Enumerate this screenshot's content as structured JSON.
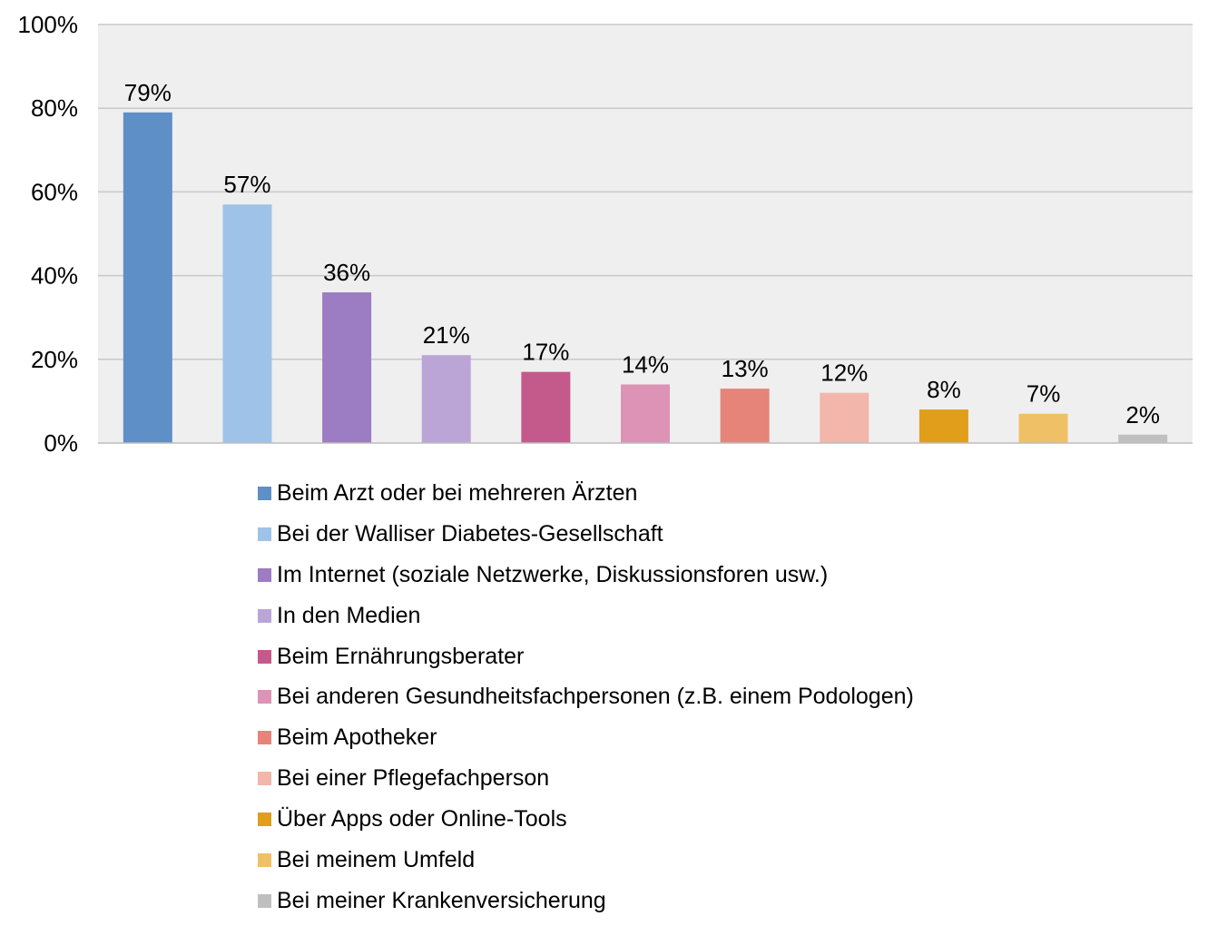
{
  "chart_data": {
    "type": "bar",
    "title": "",
    "xlabel": "",
    "ylabel": "",
    "ylim": [
      0,
      100
    ],
    "yticks": [
      0,
      20,
      40,
      60,
      80,
      100
    ],
    "ytick_labels": [
      "0%",
      "20%",
      "40%",
      "60%",
      "80%",
      "100%"
    ],
    "grid": true,
    "legend_position": "bottom",
    "plot_background": "#efefef",
    "categories": [
      "Beim Arzt oder bei mehreren Ärzten",
      "Bei der Walliser Diabetes-Gesellschaft",
      "Im Internet (soziale Netzwerke, Diskussionsforen usw.)",
      "In den Medien",
      "Beim Ernährungsberater",
      "Bei anderen Gesundheitsfachpersonen (z.B. einem Podologen)",
      "Beim Apotheker",
      "Bei einer Pflegefachperson",
      "Über Apps oder Online-Tools",
      "Bei meinem Umfeld",
      "Bei meiner Krankenversicherung"
    ],
    "values": [
      79,
      57,
      36,
      21,
      17,
      14,
      13,
      12,
      8,
      7,
      2
    ],
    "data_labels": [
      "79%",
      "57%",
      "36%",
      "21%",
      "17%",
      "14%",
      "13%",
      "12%",
      "8%",
      "7%",
      "2%"
    ],
    "colors": [
      "#5f8fc7",
      "#9fc3e8",
      "#9c7cc2",
      "#bba5d6",
      "#c45a8b",
      "#dc93b5",
      "#e6847a",
      "#f2b6ab",
      "#e09e1a",
      "#efc066",
      "#bfbfbf"
    ]
  }
}
